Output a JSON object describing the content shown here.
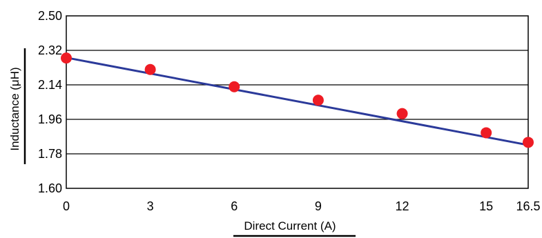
{
  "chart_data": {
    "type": "line",
    "xlabel": "Direct Current (A)",
    "ylabel": "Inductance (μH)",
    "x": [
      0,
      3,
      6,
      9,
      12,
      15,
      16.5
    ],
    "x_tick_labels": [
      "0",
      "3",
      "6",
      "9",
      "12",
      "15",
      "16.5"
    ],
    "y_tick_labels": [
      "1.60",
      "1.78",
      "1.96",
      "2.14",
      "2.32",
      "2.50"
    ],
    "xlim": [
      0,
      16.5
    ],
    "ylim": [
      1.6,
      2.5
    ],
    "grid": "horizontal",
    "series": [
      {
        "points": [
          2.28,
          2.22,
          2.13,
          2.06,
          1.99,
          1.89,
          1.84
        ],
        "fit_line": [
          2.282,
          1.826
        ]
      }
    ],
    "line_color": "#2b3a9a",
    "marker_color": "#ee1c24"
  }
}
